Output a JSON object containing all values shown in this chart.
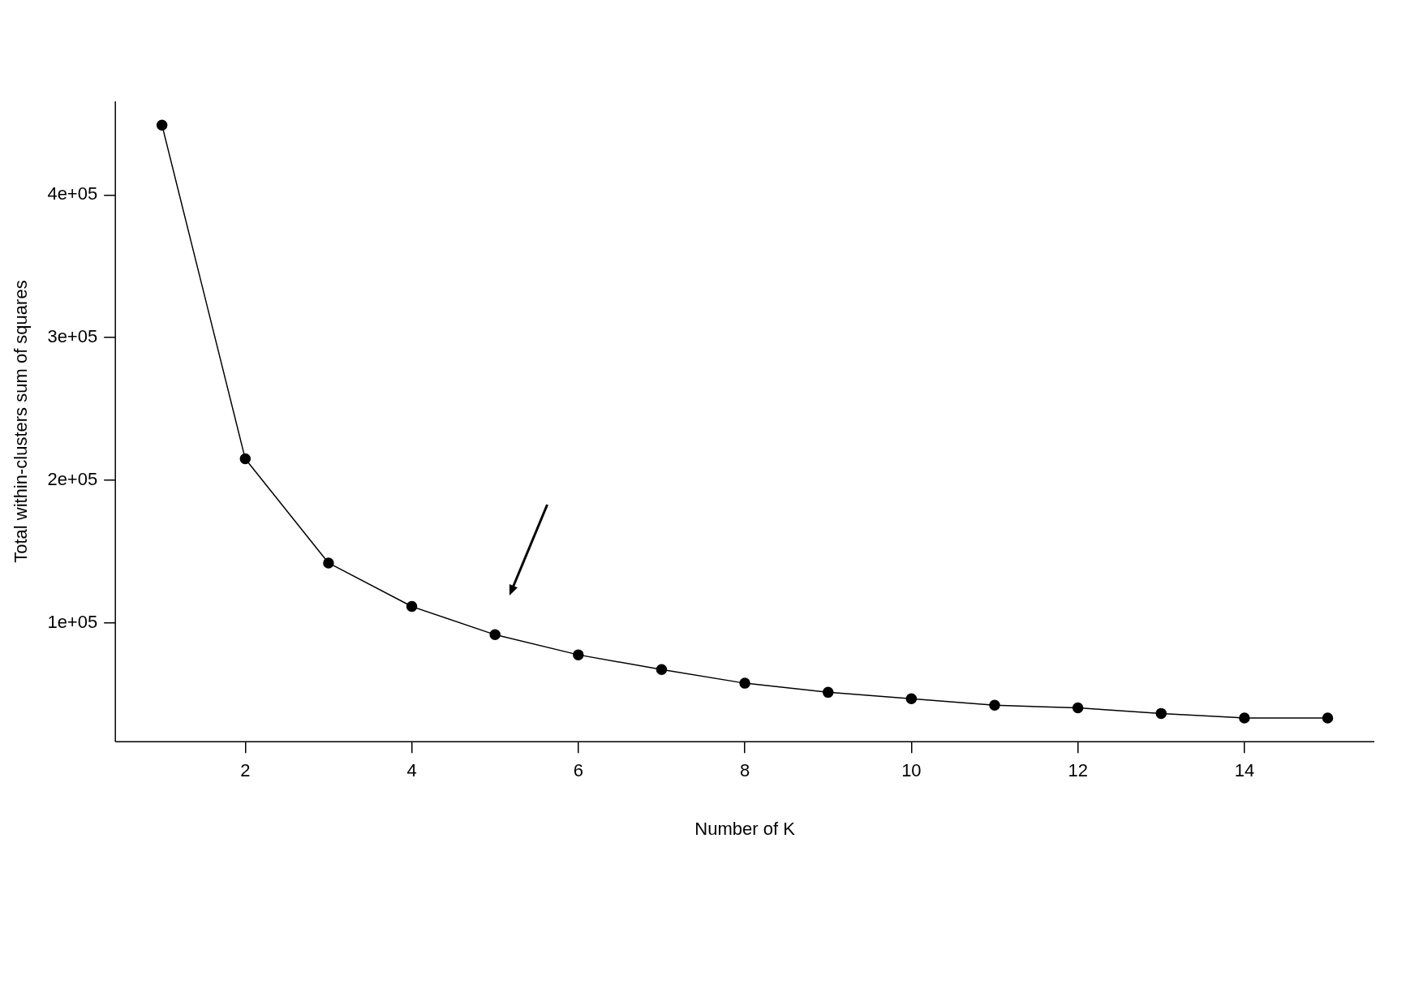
{
  "chart_data": {
    "type": "line",
    "xlabel": "Number of K",
    "ylabel": "Total within-clusters sum of squares",
    "x": [
      1,
      2,
      3,
      4,
      5,
      6,
      7,
      8,
      9,
      10,
      11,
      12,
      13,
      14,
      15
    ],
    "series": [
      {
        "color": "#000000",
        "values": [
          449000,
          215000,
          142000,
          111500,
          91700,
          77600,
          67300,
          57700,
          51300,
          46800,
          42300,
          40400,
          36500,
          33300,
          33300
        ]
      }
    ],
    "xlim": [
      0.44,
      15.56
    ],
    "xticks": [
      2,
      4,
      6,
      8,
      10,
      12,
      14
    ],
    "ylim": [
      16700,
      465600
    ],
    "yticks": [
      {
        "value": 100000,
        "label": "1e+05"
      },
      {
        "value": 200000,
        "label": "2e+05"
      },
      {
        "value": 300000,
        "label": "3e+05"
      },
      {
        "value": 400000,
        "label": "4e+05"
      }
    ],
    "grid": false,
    "legend": false,
    "marker": "circle",
    "line_style": "solid"
  }
}
